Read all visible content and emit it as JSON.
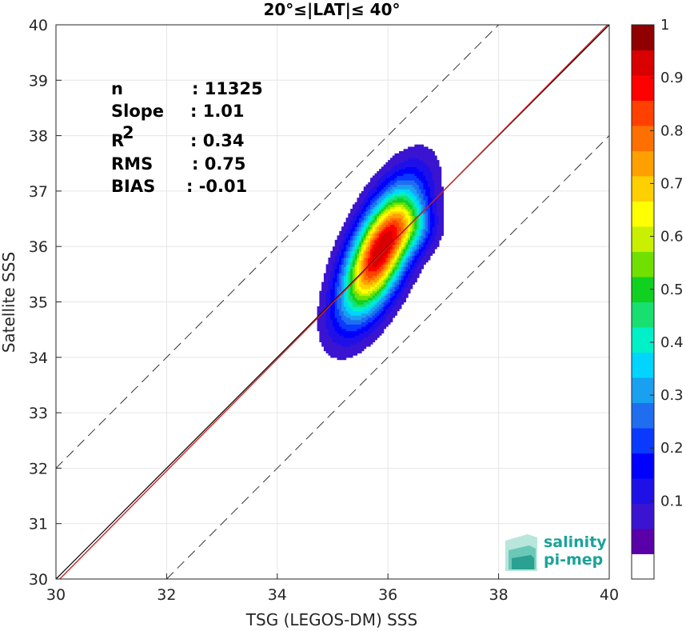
{
  "chart_data": {
    "type": "heatmap",
    "title": "20°≤|LAT|≤ 40°",
    "xlabel": "TSG (LEGOS-DM) SSS",
    "ylabel": "Satellite SSS",
    "xlim": [
      30,
      40
    ],
    "ylim": [
      30,
      40
    ],
    "xticks": [
      "30",
      "32",
      "34",
      "36",
      "38",
      "40"
    ],
    "yticks": [
      "30",
      "31",
      "32",
      "33",
      "34",
      "35",
      "36",
      "37",
      "38",
      "39",
      "40"
    ],
    "grid": true,
    "stats": [
      {
        "label": "n",
        "value": ": 11325"
      },
      {
        "label": "Slope",
        "value": ": 1.01"
      },
      {
        "label": "R",
        "sup": "2",
        "value": ": 0.34"
      },
      {
        "label": "RMS",
        "value": ": 0.75"
      },
      {
        "label": "BIAS",
        "value": ": -0.01"
      }
    ],
    "identity_line": {
      "from": [
        30,
        30
      ],
      "to": [
        40,
        40
      ],
      "color": "#000000"
    },
    "regression_line": {
      "slope": 1.01,
      "bias": -0.01,
      "color": "#d62020"
    },
    "envelope_lines": [
      {
        "from": [
          30,
          32
        ],
        "to": [
          38,
          40
        ]
      },
      {
        "from": [
          32,
          30
        ],
        "to": [
          40,
          38
        ]
      }
    ],
    "density": {
      "center": [
        35.85,
        35.9
      ],
      "sigma_along": 0.85,
      "sigma_across": 0.33,
      "orientation_deg": 66,
      "secondary_peak": [
        36.45,
        36.35
      ],
      "levels": [
        0.05,
        0.1,
        0.15,
        0.2,
        0.25,
        0.3,
        0.35,
        0.4,
        0.45,
        0.5,
        0.55,
        0.6,
        0.65,
        0.7,
        0.75,
        0.8,
        0.85,
        0.9,
        0.95
      ]
    },
    "colorbar": {
      "min": 0,
      "max": 1,
      "ticks": [
        "0.1",
        "0.2",
        "0.3",
        "0.4",
        "0.5",
        "0.6",
        "0.7",
        "0.8",
        "0.9",
        "1"
      ],
      "colors": [
        "#ffffff",
        "#5a00a8",
        "#3a14d0",
        "#1f10e8",
        "#0000ff",
        "#0a3aff",
        "#1f6ef0",
        "#1aa0f0",
        "#00d4ff",
        "#00f0c8",
        "#18e070",
        "#10d020",
        "#70e000",
        "#c8f000",
        "#ffff00",
        "#ffd000",
        "#ffa000",
        "#ff7000",
        "#ff4000",
        "#ff0000",
        "#d80000",
        "#900000"
      ]
    },
    "logo": {
      "line1": "salinity",
      "line2": "pi-mep"
    }
  }
}
